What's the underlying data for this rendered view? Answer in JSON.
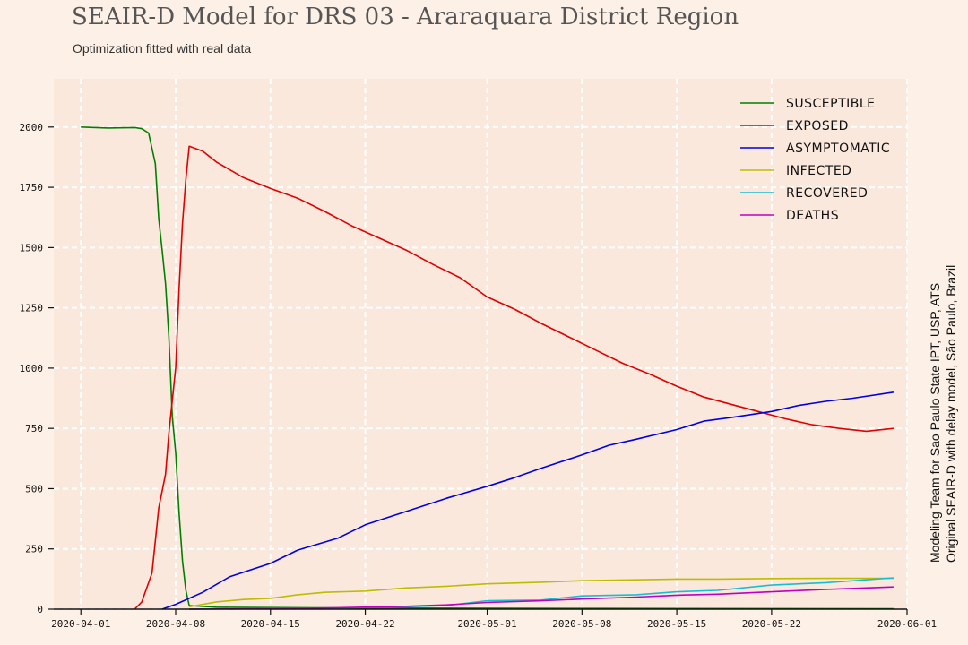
{
  "title": "SEAIR-D Model for DRS 03 - Araraquara District Region",
  "subtitle": "Optimization fitted with real data",
  "credit": {
    "line1": "Modeling Team for Sao Paulo State IPT, USP, ATS",
    "line2": "Original SEAIR-D with delay model, São Paulo, Brazil"
  },
  "colors": {
    "background": "#fdf0e6",
    "plot_background": "#fbe8dc",
    "grid": "#ffffff"
  },
  "chart_data": {
    "type": "line",
    "title": "SEAIR-D Model for DRS 03 - Araraquara District Region",
    "subtitle": "Optimization fitted with real data",
    "x_type": "date",
    "xlim": [
      "2020-03-30",
      "2020-06-01"
    ],
    "ylim": [
      0,
      2200
    ],
    "x_ticks": [
      "2020-04-01",
      "2020-04-08",
      "2020-04-15",
      "2020-04-22",
      "2020-05-01",
      "2020-05-08",
      "2020-05-15",
      "2020-05-22",
      "2020-06-01"
    ],
    "y_ticks": [
      0,
      250,
      500,
      750,
      1000,
      1250,
      1500,
      1750,
      2000
    ],
    "y_tick_labels": [
      "0",
      "250",
      "500",
      "750",
      "1000",
      "1250",
      "1500",
      "1750",
      "2000"
    ],
    "grid": true,
    "legend_position": "top-right",
    "series": [
      {
        "name": "SUSCEPTIBLE",
        "color": "#008000",
        "points": [
          [
            "2020-04-01",
            2000
          ],
          [
            "2020-04-03",
            1996
          ],
          [
            "2020-04-05",
            1998
          ],
          [
            "2020-04-05 12:00",
            1993
          ],
          [
            "2020-04-06",
            1975
          ],
          [
            "2020-04-06 12:00",
            1848
          ],
          [
            "2020-04-06 18:00",
            1620
          ],
          [
            "2020-04-07",
            1490
          ],
          [
            "2020-04-07 06:00",
            1350
          ],
          [
            "2020-04-07 12:00",
            1130
          ],
          [
            "2020-04-07 18:00",
            800
          ],
          [
            "2020-04-08",
            650
          ],
          [
            "2020-04-08 06:00",
            400
          ],
          [
            "2020-04-08 12:00",
            200
          ],
          [
            "2020-04-08 18:00",
            80
          ],
          [
            "2020-04-09",
            15
          ],
          [
            "2020-04-11",
            8
          ],
          [
            "2020-04-20",
            5
          ],
          [
            "2020-05-10",
            3
          ],
          [
            "2020-05-31",
            2
          ]
        ]
      },
      {
        "name": "EXPOSED",
        "color": "#e00000",
        "points": [
          [
            "2020-04-05",
            2
          ],
          [
            "2020-04-05 12:00",
            30
          ],
          [
            "2020-04-06 06:00",
            150
          ],
          [
            "2020-04-06 18:00",
            420
          ],
          [
            "2020-04-07 06:00",
            560
          ],
          [
            "2020-04-07 12:00",
            730
          ],
          [
            "2020-04-08",
            1000
          ],
          [
            "2020-04-08 06:00",
            1330
          ],
          [
            "2020-04-08 12:00",
            1600
          ],
          [
            "2020-04-08 18:00",
            1780
          ],
          [
            "2020-04-09",
            1920
          ],
          [
            "2020-04-10",
            1900
          ],
          [
            "2020-04-11",
            1855
          ],
          [
            "2020-04-13",
            1790
          ],
          [
            "2020-04-15",
            1745
          ],
          [
            "2020-04-17",
            1705
          ],
          [
            "2020-04-19",
            1650
          ],
          [
            "2020-04-21",
            1590
          ],
          [
            "2020-04-23",
            1540
          ],
          [
            "2020-04-25",
            1490
          ],
          [
            "2020-04-27",
            1430
          ],
          [
            "2020-04-29",
            1375
          ],
          [
            "2020-05-01",
            1295
          ],
          [
            "2020-05-03",
            1245
          ],
          [
            "2020-05-05",
            1185
          ],
          [
            "2020-05-07",
            1130
          ],
          [
            "2020-05-09",
            1075
          ],
          [
            "2020-05-11",
            1020
          ],
          [
            "2020-05-13",
            975
          ],
          [
            "2020-05-15",
            925
          ],
          [
            "2020-05-17",
            880
          ],
          [
            "2020-05-19",
            850
          ],
          [
            "2020-05-21",
            820
          ],
          [
            "2020-05-23",
            790
          ],
          [
            "2020-05-25",
            765
          ],
          [
            "2020-05-27",
            750
          ],
          [
            "2020-05-29",
            738
          ],
          [
            "2020-05-31",
            750
          ]
        ]
      },
      {
        "name": "ASYMPTOMATIC",
        "color": "#0000e0",
        "points": [
          [
            "2020-04-07",
            0
          ],
          [
            "2020-04-08",
            20
          ],
          [
            "2020-04-10",
            70
          ],
          [
            "2020-04-12",
            135
          ],
          [
            "2020-04-15",
            190
          ],
          [
            "2020-04-17",
            245
          ],
          [
            "2020-04-20",
            295
          ],
          [
            "2020-04-22",
            350
          ],
          [
            "2020-04-25",
            405
          ],
          [
            "2020-04-28",
            460
          ],
          [
            "2020-05-01",
            510
          ],
          [
            "2020-05-03",
            545
          ],
          [
            "2020-05-05",
            585
          ],
          [
            "2020-05-08",
            640
          ],
          [
            "2020-05-10",
            680
          ],
          [
            "2020-05-12",
            705
          ],
          [
            "2020-05-15",
            745
          ],
          [
            "2020-05-17",
            780
          ],
          [
            "2020-05-19",
            795
          ],
          [
            "2020-05-22",
            820
          ],
          [
            "2020-05-24",
            845
          ],
          [
            "2020-05-26",
            862
          ],
          [
            "2020-05-28",
            875
          ],
          [
            "2020-05-31",
            900
          ]
        ]
      },
      {
        "name": "INFECTED",
        "color": "#bcbd00",
        "points": [
          [
            "2020-04-09",
            10
          ],
          [
            "2020-04-11",
            30
          ],
          [
            "2020-04-13",
            40
          ],
          [
            "2020-04-15",
            45
          ],
          [
            "2020-04-17",
            60
          ],
          [
            "2020-04-19",
            70
          ],
          [
            "2020-04-22",
            75
          ],
          [
            "2020-04-25",
            88
          ],
          [
            "2020-04-28",
            95
          ],
          [
            "2020-05-01",
            105
          ],
          [
            "2020-05-05",
            112
          ],
          [
            "2020-05-08",
            118
          ],
          [
            "2020-05-12",
            122
          ],
          [
            "2020-05-15",
            125
          ],
          [
            "2020-05-18",
            125
          ],
          [
            "2020-05-22",
            127
          ],
          [
            "2020-05-26",
            128
          ],
          [
            "2020-05-31",
            128
          ]
        ]
      },
      {
        "name": "RECOVERED",
        "color": "#17becf",
        "points": [
          [
            "2020-04-09",
            0
          ],
          [
            "2020-04-15",
            3
          ],
          [
            "2020-04-20",
            5
          ],
          [
            "2020-04-25",
            10
          ],
          [
            "2020-04-28",
            15
          ],
          [
            "2020-05-01",
            35
          ],
          [
            "2020-05-05",
            38
          ],
          [
            "2020-05-08",
            55
          ],
          [
            "2020-05-12",
            60
          ],
          [
            "2020-05-15",
            72
          ],
          [
            "2020-05-18",
            78
          ],
          [
            "2020-05-22",
            100
          ],
          [
            "2020-05-26",
            110
          ],
          [
            "2020-05-31",
            130
          ]
        ]
      },
      {
        "name": "DEATHS",
        "color": "#c000c0",
        "points": [
          [
            "2020-04-09",
            0
          ],
          [
            "2020-04-15",
            2
          ],
          [
            "2020-04-20",
            6
          ],
          [
            "2020-04-25",
            12
          ],
          [
            "2020-04-28",
            18
          ],
          [
            "2020-05-01",
            28
          ],
          [
            "2020-05-05",
            35
          ],
          [
            "2020-05-08",
            42
          ],
          [
            "2020-05-12",
            50
          ],
          [
            "2020-05-15",
            58
          ],
          [
            "2020-05-18",
            62
          ],
          [
            "2020-05-22",
            72
          ],
          [
            "2020-05-26",
            82
          ],
          [
            "2020-05-31",
            92
          ]
        ]
      }
    ]
  }
}
